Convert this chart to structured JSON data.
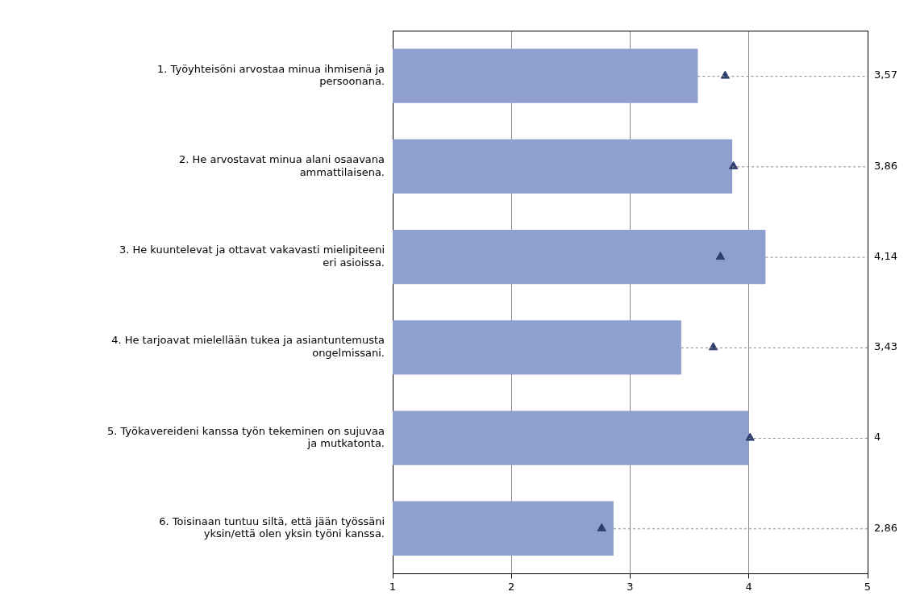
{
  "chart_data": {
    "type": "bar",
    "orientation": "horizontal",
    "categories": [
      "1. Työyhteisöni arvostaa minua ihmisenä ja persoonana.",
      "2. He arvostavat minua alani osaavana ammattilaisena.",
      "3. He kuuntelevat ja ottavat vakavasti mielipiteeni eri asioissa.",
      "4. He tarjoavat mielellään tukea ja asiantuntemusta ongelmissani.",
      "5. Työkavereideni kanssa työn tekeminen on sujuvaa ja mutkatonta.",
      "6. Toisinaan tuntuu siltä, että jään työssäni yksin/että olen yksin työni kanssa."
    ],
    "series": [
      {
        "color": "#8e9fd0",
        "values": [
          3.57,
          3.86,
          4.14,
          3.43,
          4,
          2.86
        ],
        "value_labels": [
          "3,57",
          "3,86",
          "4,14",
          "3,43",
          "4",
          "2,86"
        ]
      },
      {
        "type": "scatter",
        "color": "#2e3f6e",
        "marker": "triangle",
        "values": [
          3.8,
          3.87,
          3.76,
          3.7,
          4.01,
          2.76
        ]
      }
    ],
    "xlim": [
      1,
      5
    ],
    "xticks": [
      1,
      2,
      3,
      4,
      5
    ],
    "grid": "x",
    "legend": false
  }
}
